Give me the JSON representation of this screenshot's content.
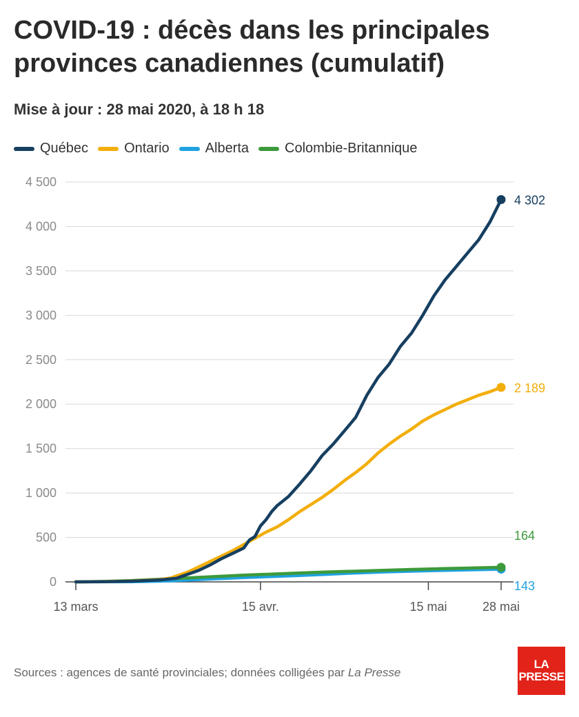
{
  "title": "COVID-19 : décès dans les principales provinces canadiennes (cumulatif)",
  "subtitle": "Mise à jour : 28 mai 2020, à 18 h 18",
  "source": {
    "text": "Sources : agences de santé provinciales; données colligées par ",
    "publication": "La Presse"
  },
  "logo": {
    "line1": "LA",
    "line2": "PRESSE",
    "color": "#e2231a"
  },
  "chart_data": {
    "type": "line",
    "title": "COVID-19 : décès dans les principales provinces canadiennes (cumulatif)",
    "xlabel": "",
    "ylabel": "",
    "ylim": [
      0,
      4500
    ],
    "yticks": [
      0,
      500,
      1000,
      1500,
      2000,
      2500,
      3000,
      3500,
      4000,
      4500
    ],
    "ytick_labels": [
      "0",
      "500",
      "1 000",
      "1 500",
      "2 000",
      "2 500",
      "3 000",
      "3 500",
      "4 000",
      "4 500"
    ],
    "x_unit": "days since 13 mars",
    "xlim": [
      0,
      76
    ],
    "xticks": [
      0,
      33,
      63,
      76
    ],
    "xtick_labels": [
      "13 mars",
      "15 avr.",
      "15 mai",
      "28 mai"
    ],
    "grid": "horizontal",
    "legend_position": "top",
    "series": [
      {
        "name": "Québec",
        "color": "#173f60",
        "end_label": "4 302",
        "end_value": 4302,
        "x": [
          0,
          5,
          10,
          15,
          18,
          20,
          22,
          24,
          26,
          28,
          30,
          31,
          32,
          33,
          34,
          35,
          36,
          38,
          40,
          42,
          44,
          46,
          48,
          50,
          52,
          54,
          56,
          58,
          60,
          62,
          64,
          66,
          68,
          70,
          72,
          74,
          76
        ],
        "y": [
          0,
          2,
          8,
          22,
          40,
          85,
          130,
          190,
          260,
          320,
          380,
          470,
          510,
          630,
          700,
          790,
          860,
          960,
          1100,
          1250,
          1420,
          1550,
          1700,
          1850,
          2100,
          2300,
          2450,
          2650,
          2800,
          3000,
          3220,
          3400,
          3550,
          3700,
          3850,
          4050,
          4302
        ]
      },
      {
        "name": "Ontario",
        "color": "#f2ae0a",
        "end_label": "2 189",
        "end_value": 2189,
        "x": [
          0,
          5,
          10,
          15,
          17,
          20,
          22,
          24,
          26,
          28,
          30,
          32,
          34,
          36,
          38,
          40,
          42,
          44,
          46,
          48,
          50,
          52,
          54,
          56,
          58,
          60,
          62,
          64,
          66,
          68,
          70,
          72,
          74,
          76
        ],
        "y": [
          0,
          3,
          10,
          25,
          45,
          110,
          170,
          230,
          290,
          350,
          420,
          490,
          560,
          620,
          700,
          790,
          870,
          950,
          1040,
          1140,
          1230,
          1330,
          1450,
          1550,
          1640,
          1720,
          1810,
          1880,
          1940,
          2000,
          2050,
          2100,
          2140,
          2189
        ]
      },
      {
        "name": "Alberta",
        "color": "#1fa2e0",
        "end_label": "143",
        "end_value": 143,
        "x": [
          0,
          10,
          15,
          20,
          25,
          30,
          35,
          40,
          45,
          50,
          55,
          60,
          65,
          70,
          76
        ],
        "y": [
          0,
          2,
          8,
          20,
          35,
          48,
          60,
          72,
          85,
          100,
          112,
          120,
          128,
          135,
          143
        ]
      },
      {
        "name": "Colombie-Britannique",
        "color": "#3d9a3b",
        "end_label": "164",
        "end_value": 164,
        "x": [
          0,
          5,
          10,
          15,
          20,
          25,
          30,
          35,
          40,
          45,
          50,
          55,
          60,
          65,
          70,
          76
        ],
        "y": [
          0,
          5,
          15,
          30,
          45,
          60,
          75,
          88,
          100,
          112,
          120,
          130,
          140,
          148,
          155,
          164
        ]
      }
    ]
  }
}
